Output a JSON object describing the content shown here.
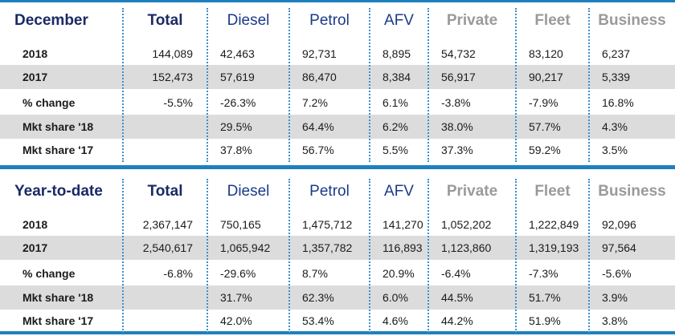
{
  "sections": [
    {
      "header": [
        "December",
        "Total",
        "Diesel",
        "Petrol",
        "AFV",
        "Private",
        "Fleet",
        "Business"
      ],
      "rows": [
        {
          "label": "2018",
          "shaded": false,
          "values": [
            "144,089",
            "42,463",
            "92,731",
            "8,895",
            "54,732",
            "83,120",
            "6,237"
          ]
        },
        {
          "label": "2017",
          "shaded": true,
          "values": [
            "152,473",
            "57,619",
            "86,470",
            "8,384",
            "56,917",
            "90,217",
            "5,339"
          ]
        },
        {
          "label": "% change",
          "shaded": false,
          "values": [
            "-5.5%",
            "-26.3%",
            "7.2%",
            "6.1%",
            "-3.8%",
            "-7.9%",
            "16.8%"
          ]
        },
        {
          "label": "Mkt share '18",
          "shaded": true,
          "values": [
            "",
            "29.5%",
            "64.4%",
            "6.2%",
            "38.0%",
            "57.7%",
            "4.3%"
          ]
        },
        {
          "label": "Mkt share '17",
          "shaded": false,
          "values": [
            "",
            "37.8%",
            "56.7%",
            "5.5%",
            "37.3%",
            "59.2%",
            "3.5%"
          ]
        }
      ]
    },
    {
      "header": [
        "Year-to-date",
        "Total",
        "Diesel",
        "Petrol",
        "AFV",
        "Private",
        "Fleet",
        "Business"
      ],
      "rows": [
        {
          "label": "2018",
          "shaded": false,
          "values": [
            "2,367,147",
            "750,165",
            "1,475,712",
            "141,270",
            "1,052,202",
            "1,222,849",
            "92,096"
          ]
        },
        {
          "label": "2017",
          "shaded": true,
          "values": [
            "2,540,617",
            "1,065,942",
            "1,357,782",
            "116,893",
            "1,123,860",
            "1,319,193",
            "97,564"
          ]
        },
        {
          "label": "% change",
          "shaded": false,
          "values": [
            "-6.8%",
            "-29.6%",
            "8.7%",
            "20.9%",
            "-6.4%",
            "-7.3%",
            "-5.6%"
          ]
        },
        {
          "label": "Mkt share '18",
          "shaded": true,
          "values": [
            "",
            "31.7%",
            "62.3%",
            "6.0%",
            "44.5%",
            "51.7%",
            "3.9%"
          ]
        },
        {
          "label": "Mkt share '17",
          "shaded": false,
          "values": [
            "",
            "42.0%",
            "53.4%",
            "4.6%",
            "44.2%",
            "51.9%",
            "3.8%"
          ]
        }
      ]
    }
  ],
  "colors": {
    "rule": "#1e7fbf",
    "shade": "#dcdcdc",
    "header_dark": "#1a2a66",
    "header_fuel": "#1a3a8a",
    "header_grey": "#9a9a9a",
    "divider": "#3a90cc"
  }
}
